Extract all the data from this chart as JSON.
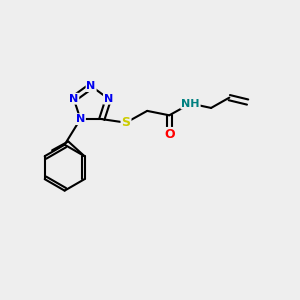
{
  "background_color": "#eeeeee",
  "atom_colors": {
    "N": "#0000ee",
    "O": "#ff0000",
    "S": "#cccc00",
    "C": "#000000",
    "H": "#008080"
  },
  "bond_color": "#000000",
  "bond_width": 1.5
}
